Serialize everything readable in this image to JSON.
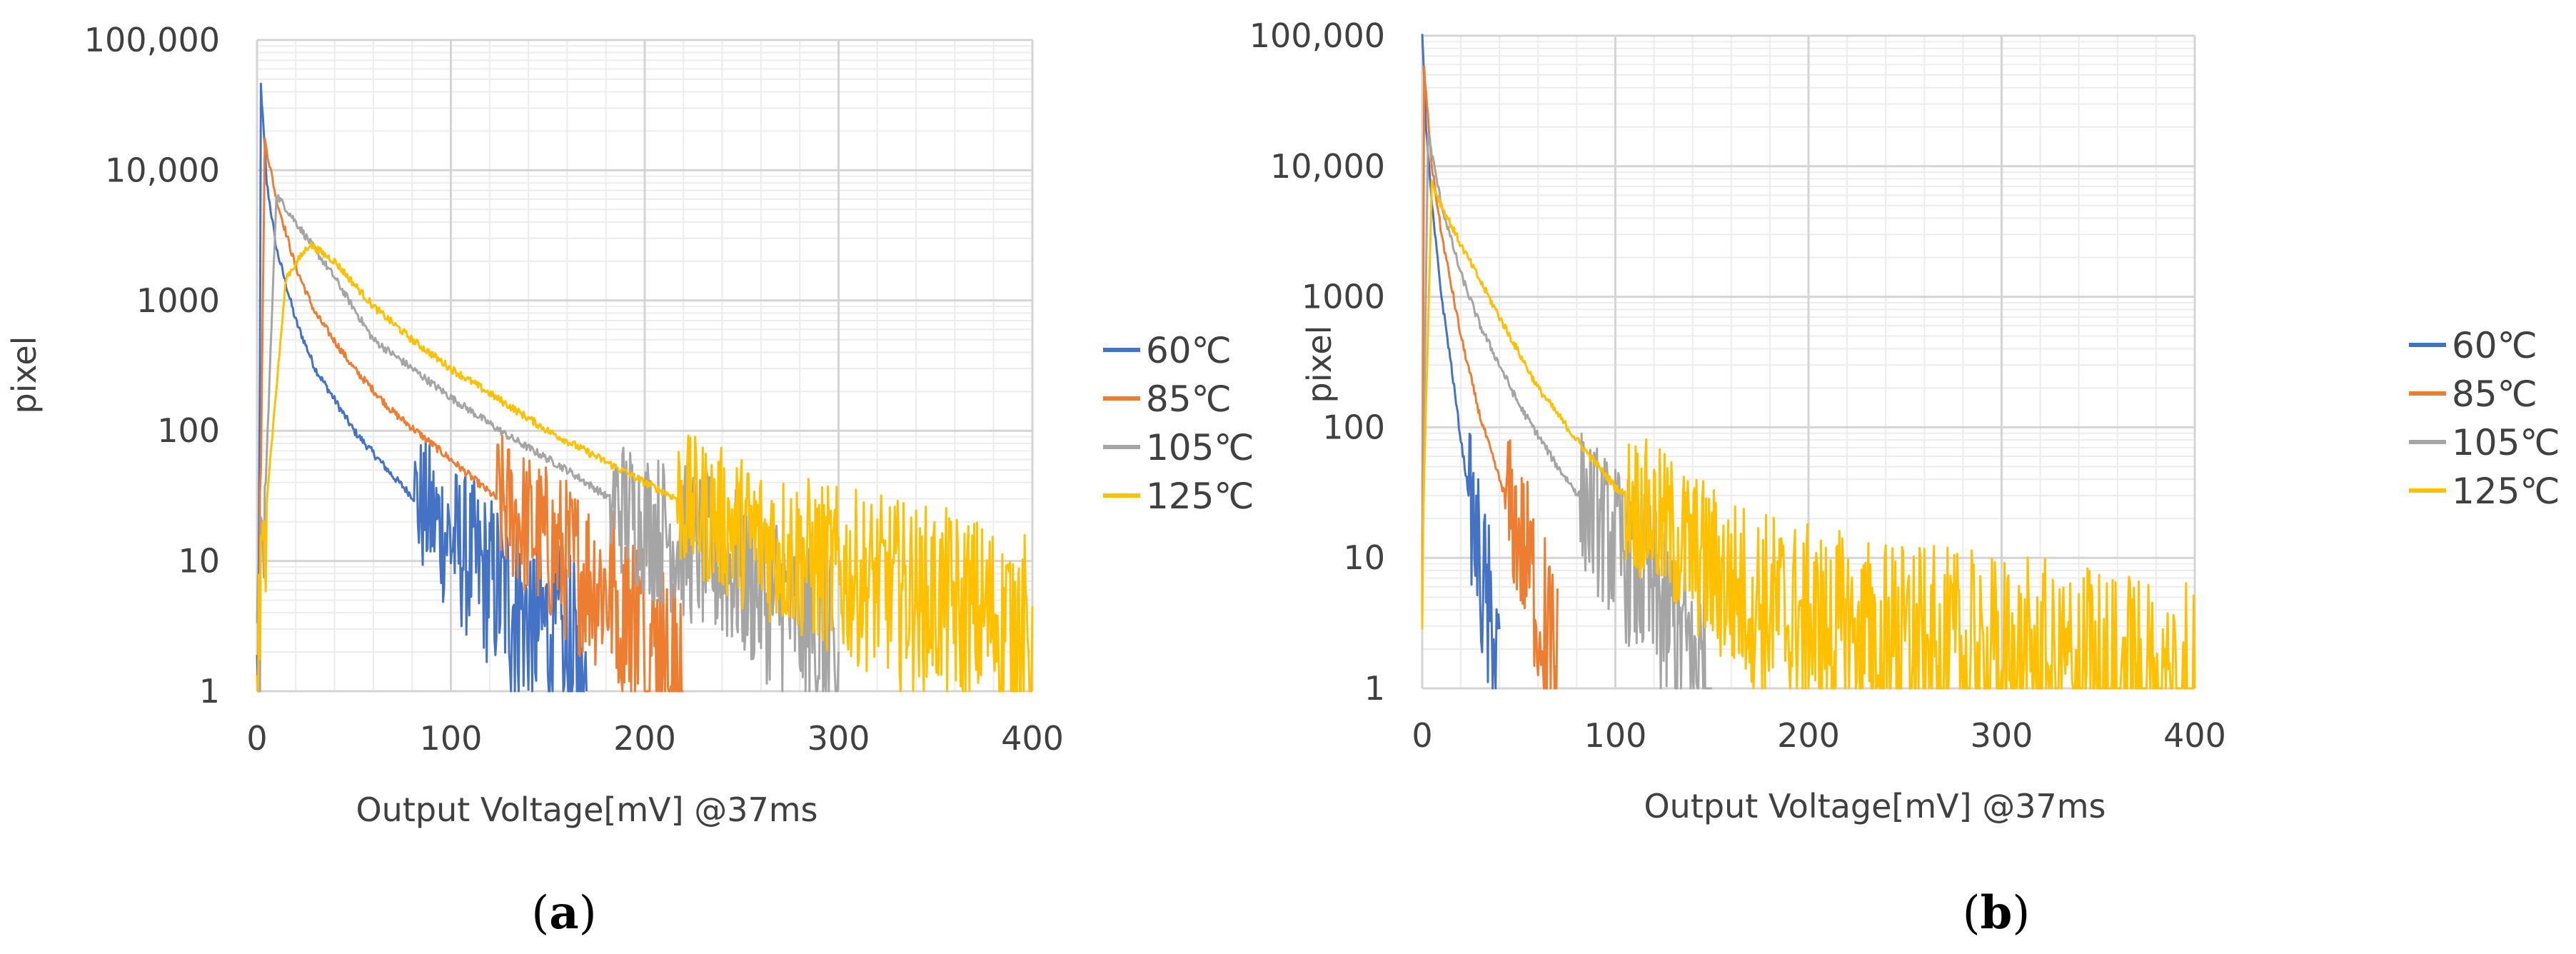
{
  "chart_data": [
    {
      "type": "line",
      "panel_label": "a",
      "xlabel": "Output Voltage[mV]  @37ms",
      "ylabel": "pixel",
      "yscale": "log",
      "xlim": [
        0,
        400
      ],
      "ylim": [
        1,
        100000
      ],
      "x_ticks": [
        "0",
        "100",
        "200",
        "300",
        "400"
      ],
      "y_ticks": [
        "1",
        "10",
        "100",
        "1000",
        "10,000",
        "100,000"
      ],
      "grid": true,
      "legend_position": "right",
      "series": [
        {
          "name": "60℃",
          "color": "#4472C4",
          "peak_x": 2,
          "peak_y": 45000,
          "points": [
            [
              0,
              1
            ],
            [
              1,
              3
            ],
            [
              2,
              45000
            ],
            [
              5,
              8000
            ],
            [
              10,
              2500
            ],
            [
              20,
              700
            ],
            [
              30,
              300
            ],
            [
              50,
              100
            ],
            [
              70,
              45
            ],
            [
              90,
              22
            ],
            [
              110,
              10
            ],
            [
              130,
              5
            ],
            [
              150,
              3
            ],
            [
              170,
              1
            ]
          ]
        },
        {
          "name": "85℃",
          "color": "#ED7D31",
          "peak_x": 4,
          "peak_y": 17000,
          "points": [
            [
              0,
              1
            ],
            [
              1,
              3
            ],
            [
              4,
              17000
            ],
            [
              10,
              6000
            ],
            [
              20,
              1800
            ],
            [
              30,
              800
            ],
            [
              50,
              300
            ],
            [
              70,
              140
            ],
            [
              100,
              60
            ],
            [
              130,
              25
            ],
            [
              160,
              10
            ],
            [
              190,
              5
            ],
            [
              220,
              1
            ]
          ]
        },
        {
          "name": "105℃",
          "color": "#A5A5A5",
          "peak_x": 10,
          "peak_y": 6500,
          "points": [
            [
              0,
              1
            ],
            [
              3,
              10
            ],
            [
              10,
              6500
            ],
            [
              20,
              4000
            ],
            [
              40,
              1500
            ],
            [
              60,
              500
            ],
            [
              80,
              300
            ],
            [
              100,
              180
            ],
            [
              130,
              90
            ],
            [
              160,
              50
            ],
            [
              200,
              20
            ],
            [
              250,
              8
            ],
            [
              290,
              3
            ],
            [
              300,
              1
            ]
          ]
        },
        {
          "name": "125℃",
          "color": "#FFC000",
          "peak_x": 27,
          "peak_y": 2700,
          "points": [
            [
              0,
              1
            ],
            [
              5,
              30
            ],
            [
              15,
              1500
            ],
            [
              27,
              2700
            ],
            [
              40,
              2000
            ],
            [
              60,
              900
            ],
            [
              80,
              500
            ],
            [
              100,
              300
            ],
            [
              150,
              100
            ],
            [
              200,
              40
            ],
            [
              250,
              17
            ],
            [
              300,
              8
            ],
            [
              350,
              5
            ],
            [
              400,
              3
            ]
          ]
        }
      ]
    },
    {
      "type": "line",
      "panel_label": "b",
      "xlabel": "Output Voltage[mV]  @37ms",
      "ylabel": "pixel",
      "yscale": "log",
      "xlim": [
        0,
        400
      ],
      "ylim": [
        1,
        100000
      ],
      "x_ticks": [
        "0",
        "100",
        "200",
        "300",
        "400"
      ],
      "y_ticks": [
        "1",
        "10",
        "100",
        "1000",
        "10,000",
        "100,000"
      ],
      "grid": true,
      "legend_position": "right",
      "series": [
        {
          "name": "60℃",
          "color": "#4472C4",
          "peak_x": 0,
          "peak_y": 100000,
          "points": [
            [
              0,
              100000
            ],
            [
              2,
              20000
            ],
            [
              5,
              5000
            ],
            [
              10,
              1000
            ],
            [
              15,
              300
            ],
            [
              20,
              80
            ],
            [
              25,
              25
            ],
            [
              30,
              8
            ],
            [
              35,
              3
            ],
            [
              40,
              1
            ]
          ]
        },
        {
          "name": "85℃",
          "color": "#ED7D31",
          "peak_x": 1,
          "peak_y": 55000,
          "points": [
            [
              0,
              6
            ],
            [
              1,
              55000
            ],
            [
              5,
              10000
            ],
            [
              10,
              3000
            ],
            [
              20,
              500
            ],
            [
              30,
              120
            ],
            [
              40,
              40
            ],
            [
              50,
              15
            ],
            [
              60,
              5
            ],
            [
              70,
              1
            ]
          ]
        },
        {
          "name": "105℃",
          "color": "#A5A5A5",
          "peak_x": 3,
          "peak_y": 18000,
          "points": [
            [
              0,
              10
            ],
            [
              3,
              18000
            ],
            [
              10,
              5000
            ],
            [
              20,
              1500
            ],
            [
              30,
              600
            ],
            [
              50,
              150
            ],
            [
              70,
              50
            ],
            [
              90,
              20
            ],
            [
              110,
              8
            ],
            [
              130,
              3
            ],
            [
              150,
              1
            ]
          ]
        },
        {
          "name": "125℃",
          "color": "#FFC000",
          "peak_x": 5,
          "peak_y": 7500,
          "points": [
            [
              0,
              12
            ],
            [
              5,
              7500
            ],
            [
              10,
              5000
            ],
            [
              20,
              2500
            ],
            [
              40,
              700
            ],
            [
              60,
              200
            ],
            [
              80,
              80
            ],
            [
              100,
              35
            ],
            [
              130,
              15
            ],
            [
              160,
              6
            ],
            [
              200,
              3
            ],
            [
              250,
              2
            ],
            [
              300,
              1.5
            ],
            [
              350,
              1.2
            ],
            [
              400,
              1
            ]
          ]
        }
      ]
    }
  ]
}
